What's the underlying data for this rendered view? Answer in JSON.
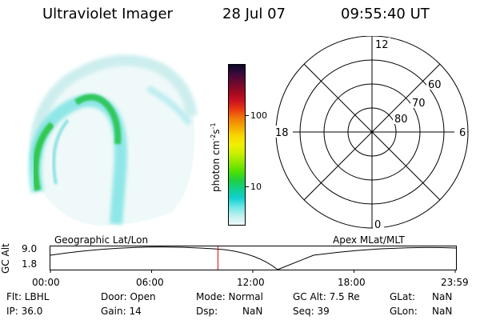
{
  "header": {
    "title": "Ultraviolet Imager",
    "date": "28 Jul 07",
    "time": "09:55:40 UT"
  },
  "colorbar": {
    "label": "photon cm",
    "label_sup1": "-2",
    "label_mid": "s",
    "label_sup2": "-1",
    "ticks": [
      "100",
      "10"
    ],
    "colors": [
      "#0a0a2a",
      "#3a0a3a",
      "#6a0a30",
      "#9a0a20",
      "#c81020",
      "#e83a10",
      "#f07a0a",
      "#f5a800",
      "#f7d800",
      "#f0f000",
      "#c8f000",
      "#90e800",
      "#50e000",
      "#20d040",
      "#10d090",
      "#10d0d0",
      "#70e6e6",
      "#c0f0f0",
      "#ecfafa"
    ]
  },
  "polar": {
    "labels": {
      "top": "12",
      "left": "18",
      "right": "6",
      "bottom": "0"
    },
    "lat_labels": [
      "60",
      "70",
      "80"
    ]
  },
  "timeline": {
    "left_label": "Geographic Lat/Lon",
    "right_label": "Apex MLat/MLT",
    "axis_label": "GC Alt",
    "y_top": "9.0",
    "y_bottom": "1.8",
    "x_ticks": [
      "00:00",
      "06:00",
      "12:00",
      "18:00",
      "23:59"
    ],
    "cursor_hours": 9.93
  },
  "info": {
    "flt": "Flt: LBHL",
    "ip": "IP: 36.0",
    "door": "Door: Open",
    "gain": "Gain: 14",
    "mode": "Mode: Normal",
    "dsp": "Dsp:",
    "dsp_val": "NaN",
    "gc_alt": "GC Alt: 7.5 Re",
    "seq": "Seq: 39",
    "glat": "GLat:",
    "glat_val": "NaN",
    "glon": "GLon:",
    "glon_val": "NaN"
  }
}
